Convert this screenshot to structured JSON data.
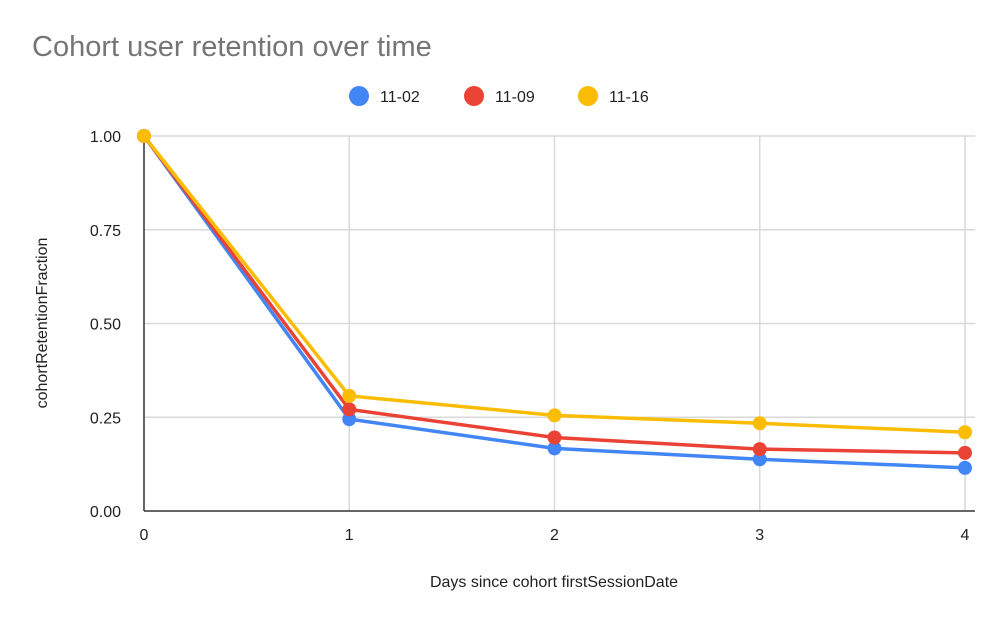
{
  "chart_data": {
    "type": "line",
    "title": "Cohort user retention over time",
    "xlabel": "Days since cohort firstSessionDate",
    "ylabel": "cohortRetentionFraction",
    "x": [
      0,
      1,
      2,
      3,
      4
    ],
    "x_ticks": [
      "0",
      "1",
      "2",
      "3",
      "4"
    ],
    "y_ticks": [
      "0.00",
      "0.25",
      "0.50",
      "0.75",
      "1.00"
    ],
    "ylim": [
      0,
      1
    ],
    "xlim": [
      0,
      4
    ],
    "grid": true,
    "legend": "top-center",
    "series": [
      {
        "name": "11-02",
        "color": "#4285f4",
        "values": [
          1.0,
          0.245,
          0.167,
          0.138,
          0.115
        ]
      },
      {
        "name": "11-09",
        "color": "#ea4335",
        "values": [
          1.0,
          0.271,
          0.196,
          0.165,
          0.155
        ]
      },
      {
        "name": "11-16",
        "color": "#fbbc04",
        "values": [
          1.0,
          0.307,
          0.255,
          0.234,
          0.21
        ]
      }
    ]
  }
}
